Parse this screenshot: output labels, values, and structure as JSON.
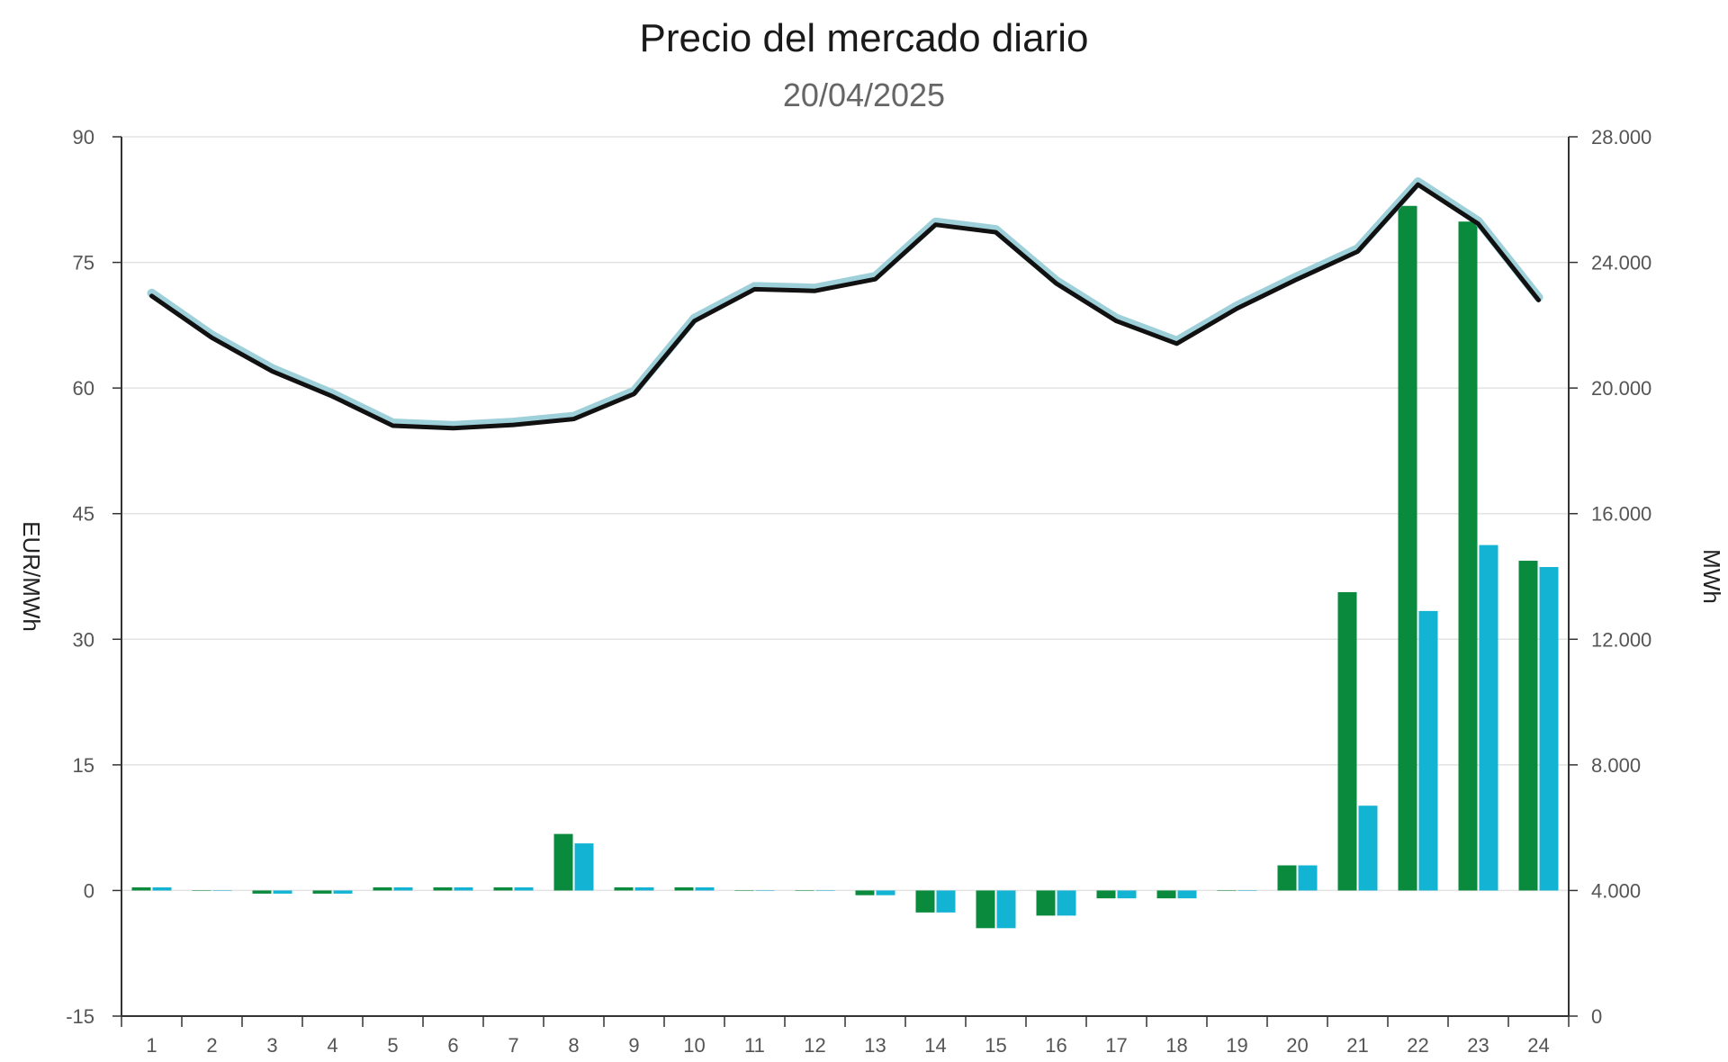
{
  "chart_data": {
    "type": "bar",
    "title": "Precio del mercado diario",
    "subtitle": "20/04/2025",
    "categories": [
      "1",
      "2",
      "3",
      "4",
      "5",
      "6",
      "7",
      "8",
      "9",
      "10",
      "11",
      "12",
      "13",
      "14",
      "15",
      "16",
      "17",
      "18",
      "19",
      "20",
      "21",
      "22",
      "23",
      "24"
    ],
    "bar_series": [
      {
        "color": "#0a8a3c",
        "values": [
          4.1,
          4.0,
          3.9,
          3.9,
          4.1,
          4.1,
          4.1,
          5.8,
          4.1,
          4.1,
          4.0,
          4.0,
          3.85,
          3.3,
          2.8,
          3.2,
          3.75,
          3.75,
          4.0,
          4.8,
          13.5,
          25.8,
          25.3,
          14.5
        ]
      },
      {
        "color": "#13b3d3",
        "values": [
          4.1,
          4.0,
          3.9,
          3.9,
          4.1,
          4.1,
          4.1,
          5.5,
          4.1,
          4.1,
          4.0,
          4.0,
          3.85,
          3.3,
          2.8,
          3.2,
          3.75,
          3.75,
          4.0,
          4.8,
          6.7,
          12.9,
          15.0,
          14.3
        ]
      }
    ],
    "line_series": [
      {
        "color": "#111111",
        "values": [
          71.0,
          66.0,
          62.0,
          59.0,
          55.5,
          55.2,
          55.6,
          56.3,
          59.3,
          68.0,
          71.8,
          71.6,
          73.0,
          79.5,
          78.6,
          72.5,
          68.0,
          65.3,
          69.5,
          73.0,
          76.3,
          84.3,
          79.6,
          70.5
        ]
      }
    ],
    "y_left": {
      "label": "EUR/MWh",
      "ylim": [
        -15,
        90
      ],
      "ticks": [
        "-15",
        "0",
        "15",
        "30",
        "45",
        "60",
        "75",
        "90"
      ]
    },
    "y_right": {
      "label": "MWh",
      "ylim": [
        0,
        28000
      ],
      "ticks": [
        "0",
        "4.000",
        "8.000",
        "12.000",
        "16.000",
        "20.000",
        "24.000",
        "28.000"
      ]
    },
    "grid": true
  }
}
